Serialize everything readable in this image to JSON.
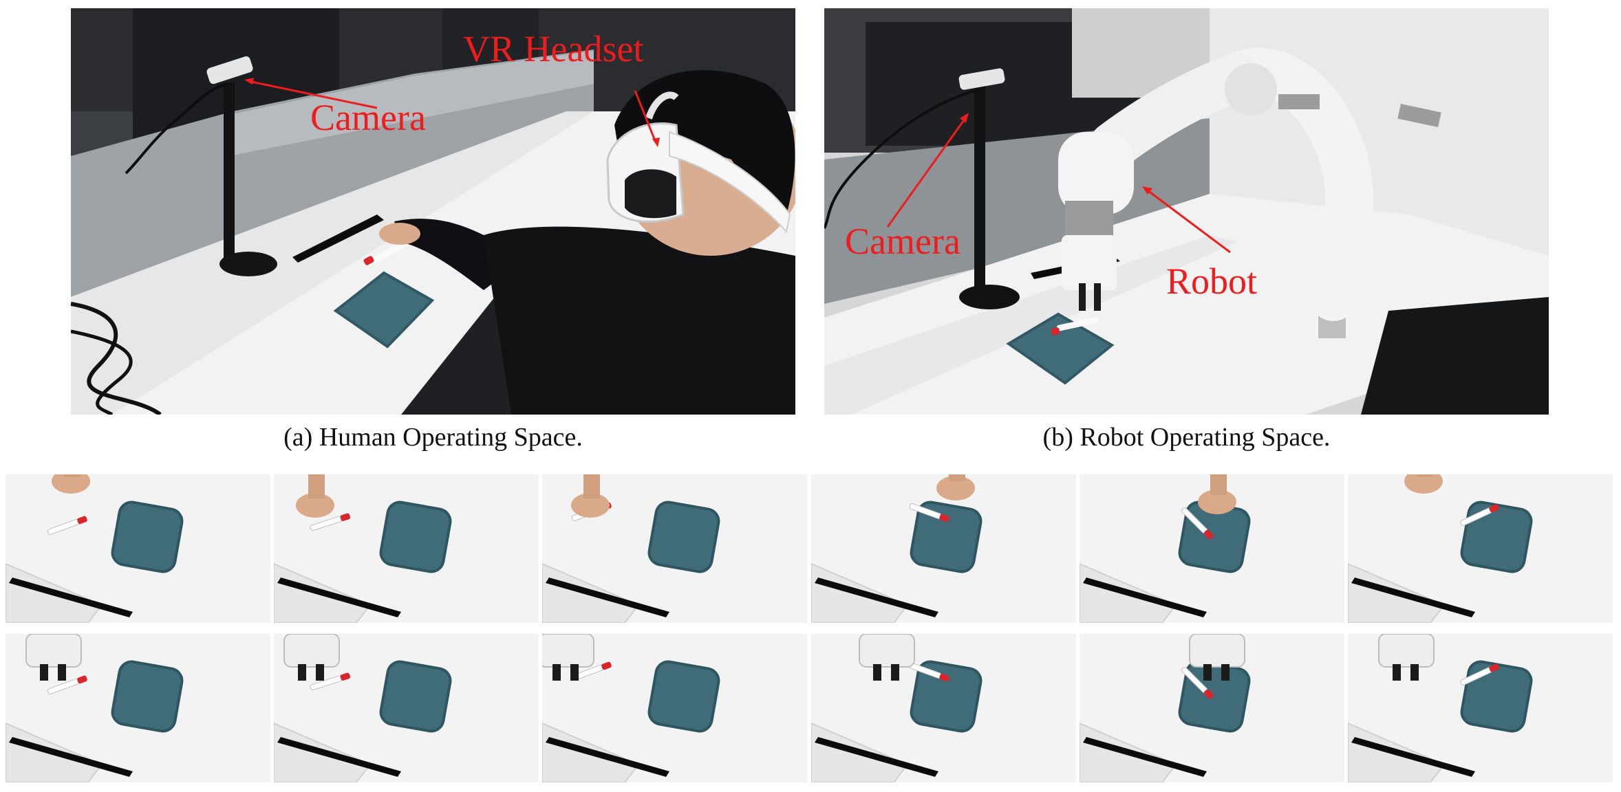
{
  "figure": {
    "panel_a": {
      "caption": "(a) Human Operating Space.",
      "labels": {
        "camera": "Camera",
        "vr_headset": "VR Headset"
      }
    },
    "panel_b": {
      "caption": "(b) Robot Operating Space.",
      "labels": {
        "camera": "Camera",
        "robot": "Robot"
      }
    },
    "human_frames_count": 6,
    "robot_frames_count": 6
  },
  "colors": {
    "annotation": "#ee1c1c",
    "tray": "#3f6c78",
    "marker_cap": "#d8262a",
    "table": "#f3f3f3",
    "robot_body": "#eeeeee"
  }
}
